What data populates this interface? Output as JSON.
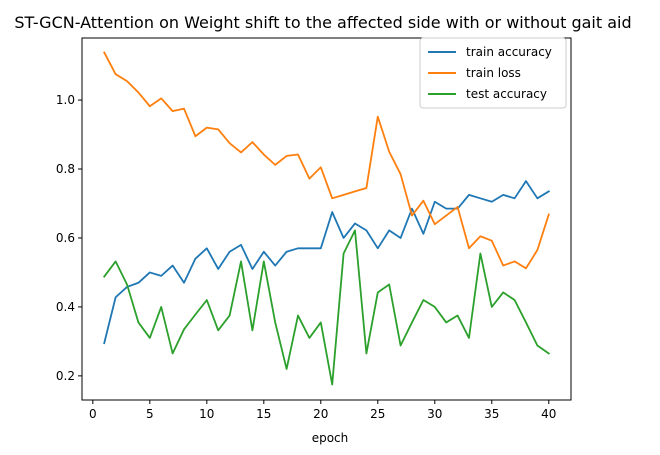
{
  "chart_data": {
    "type": "line",
    "title": "ST-GCN-Attention on Weight shift to the affected side with or without gait aid",
    "xlabel": "epoch",
    "ylabel": "",
    "xlim": [
      -0.95,
      41.95
    ],
    "ylim": [
      0.13,
      1.18
    ],
    "xticks": [
      0,
      5,
      10,
      15,
      20,
      25,
      30,
      35,
      40
    ],
    "yticks": [
      0.2,
      0.4,
      0.6,
      0.8,
      1.0
    ],
    "ytick_labels": [
      "0.2",
      "0.4",
      "0.6",
      "0.8",
      "1.0"
    ],
    "grid": false,
    "legend_position": "upper right",
    "x": [
      1,
      2,
      3,
      4,
      5,
      6,
      7,
      8,
      9,
      10,
      11,
      12,
      13,
      14,
      15,
      16,
      17,
      18,
      19,
      20,
      21,
      22,
      23,
      24,
      25,
      26,
      27,
      28,
      29,
      30,
      31,
      32,
      33,
      34,
      35,
      36,
      37,
      38,
      39,
      40
    ],
    "series": [
      {
        "name": "train accuracy",
        "color": "#1f77b4",
        "values": [
          0.295,
          0.428,
          0.458,
          0.47,
          0.5,
          0.49,
          0.52,
          0.47,
          0.54,
          0.57,
          0.51,
          0.56,
          0.58,
          0.51,
          0.56,
          0.52,
          0.56,
          0.57,
          0.57,
          0.57,
          0.675,
          0.6,
          0.642,
          0.622,
          0.57,
          0.622,
          0.6,
          0.685,
          0.612,
          0.705,
          0.685,
          0.685,
          0.725,
          0.715,
          0.705,
          0.725,
          0.715,
          0.765,
          0.715,
          0.735
        ]
      },
      {
        "name": "train loss",
        "color": "#ff7f0e",
        "values": [
          1.138,
          1.075,
          1.055,
          1.022,
          0.982,
          1.005,
          0.968,
          0.975,
          0.895,
          0.92,
          0.915,
          0.875,
          0.848,
          0.878,
          0.842,
          0.812,
          0.838,
          0.842,
          0.772,
          0.805,
          0.715,
          0.725,
          0.735,
          0.745,
          0.952,
          0.85,
          0.785,
          0.665,
          0.708,
          0.64,
          0.665,
          0.69,
          0.57,
          0.605,
          0.592,
          0.52,
          0.532,
          0.512,
          0.565,
          0.668
        ]
      },
      {
        "name": "test accuracy",
        "color": "#2ca02c",
        "values": [
          0.488,
          0.532,
          0.465,
          0.355,
          0.31,
          0.4,
          0.265,
          0.335,
          0.378,
          0.42,
          0.332,
          0.375,
          0.532,
          0.332,
          0.532,
          0.355,
          0.22,
          0.375,
          0.31,
          0.355,
          0.175,
          0.555,
          0.622,
          0.265,
          0.442,
          0.465,
          0.288,
          0.355,
          0.42,
          0.4,
          0.355,
          0.375,
          0.31,
          0.555,
          0.4,
          0.442,
          0.42,
          0.355,
          0.288,
          0.265
        ]
      }
    ]
  }
}
